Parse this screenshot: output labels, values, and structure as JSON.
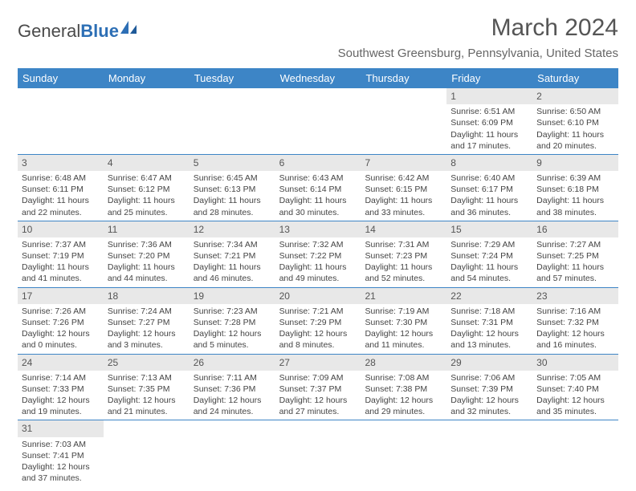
{
  "logo": {
    "text_a": "General",
    "text_b": "Blue"
  },
  "title": "March 2024",
  "location": "Southwest Greensburg, Pennsylvania, United States",
  "colors": {
    "header_bg": "#3d85c6",
    "header_text": "#ffffff",
    "daynum_bg": "#e8e8e8",
    "row_border": "#3d85c6",
    "body_text": "#444444"
  },
  "day_headers": [
    "Sunday",
    "Monday",
    "Tuesday",
    "Wednesday",
    "Thursday",
    "Friday",
    "Saturday"
  ],
  "weeks": [
    [
      null,
      null,
      null,
      null,
      null,
      {
        "n": "1",
        "sunrise": "6:51 AM",
        "sunset": "6:09 PM",
        "day_h": 11,
        "day_m": 17
      },
      {
        "n": "2",
        "sunrise": "6:50 AM",
        "sunset": "6:10 PM",
        "day_h": 11,
        "day_m": 20
      }
    ],
    [
      {
        "n": "3",
        "sunrise": "6:48 AM",
        "sunset": "6:11 PM",
        "day_h": 11,
        "day_m": 22
      },
      {
        "n": "4",
        "sunrise": "6:47 AM",
        "sunset": "6:12 PM",
        "day_h": 11,
        "day_m": 25
      },
      {
        "n": "5",
        "sunrise": "6:45 AM",
        "sunset": "6:13 PM",
        "day_h": 11,
        "day_m": 28
      },
      {
        "n": "6",
        "sunrise": "6:43 AM",
        "sunset": "6:14 PM",
        "day_h": 11,
        "day_m": 30
      },
      {
        "n": "7",
        "sunrise": "6:42 AM",
        "sunset": "6:15 PM",
        "day_h": 11,
        "day_m": 33
      },
      {
        "n": "8",
        "sunrise": "6:40 AM",
        "sunset": "6:17 PM",
        "day_h": 11,
        "day_m": 36
      },
      {
        "n": "9",
        "sunrise": "6:39 AM",
        "sunset": "6:18 PM",
        "day_h": 11,
        "day_m": 38
      }
    ],
    [
      {
        "n": "10",
        "sunrise": "7:37 AM",
        "sunset": "7:19 PM",
        "day_h": 11,
        "day_m": 41
      },
      {
        "n": "11",
        "sunrise": "7:36 AM",
        "sunset": "7:20 PM",
        "day_h": 11,
        "day_m": 44
      },
      {
        "n": "12",
        "sunrise": "7:34 AM",
        "sunset": "7:21 PM",
        "day_h": 11,
        "day_m": 46
      },
      {
        "n": "13",
        "sunrise": "7:32 AM",
        "sunset": "7:22 PM",
        "day_h": 11,
        "day_m": 49
      },
      {
        "n": "14",
        "sunrise": "7:31 AM",
        "sunset": "7:23 PM",
        "day_h": 11,
        "day_m": 52
      },
      {
        "n": "15",
        "sunrise": "7:29 AM",
        "sunset": "7:24 PM",
        "day_h": 11,
        "day_m": 54
      },
      {
        "n": "16",
        "sunrise": "7:27 AM",
        "sunset": "7:25 PM",
        "day_h": 11,
        "day_m": 57
      }
    ],
    [
      {
        "n": "17",
        "sunrise": "7:26 AM",
        "sunset": "7:26 PM",
        "day_h": 12,
        "day_m": 0
      },
      {
        "n": "18",
        "sunrise": "7:24 AM",
        "sunset": "7:27 PM",
        "day_h": 12,
        "day_m": 3
      },
      {
        "n": "19",
        "sunrise": "7:23 AM",
        "sunset": "7:28 PM",
        "day_h": 12,
        "day_m": 5
      },
      {
        "n": "20",
        "sunrise": "7:21 AM",
        "sunset": "7:29 PM",
        "day_h": 12,
        "day_m": 8
      },
      {
        "n": "21",
        "sunrise": "7:19 AM",
        "sunset": "7:30 PM",
        "day_h": 12,
        "day_m": 11
      },
      {
        "n": "22",
        "sunrise": "7:18 AM",
        "sunset": "7:31 PM",
        "day_h": 12,
        "day_m": 13
      },
      {
        "n": "23",
        "sunrise": "7:16 AM",
        "sunset": "7:32 PM",
        "day_h": 12,
        "day_m": 16
      }
    ],
    [
      {
        "n": "24",
        "sunrise": "7:14 AM",
        "sunset": "7:33 PM",
        "day_h": 12,
        "day_m": 19
      },
      {
        "n": "25",
        "sunrise": "7:13 AM",
        "sunset": "7:35 PM",
        "day_h": 12,
        "day_m": 21
      },
      {
        "n": "26",
        "sunrise": "7:11 AM",
        "sunset": "7:36 PM",
        "day_h": 12,
        "day_m": 24
      },
      {
        "n": "27",
        "sunrise": "7:09 AM",
        "sunset": "7:37 PM",
        "day_h": 12,
        "day_m": 27
      },
      {
        "n": "28",
        "sunrise": "7:08 AM",
        "sunset": "7:38 PM",
        "day_h": 12,
        "day_m": 29
      },
      {
        "n": "29",
        "sunrise": "7:06 AM",
        "sunset": "7:39 PM",
        "day_h": 12,
        "day_m": 32
      },
      {
        "n": "30",
        "sunrise": "7:05 AM",
        "sunset": "7:40 PM",
        "day_h": 12,
        "day_m": 35
      }
    ],
    [
      {
        "n": "31",
        "sunrise": "7:03 AM",
        "sunset": "7:41 PM",
        "day_h": 12,
        "day_m": 37
      },
      null,
      null,
      null,
      null,
      null,
      null
    ]
  ]
}
